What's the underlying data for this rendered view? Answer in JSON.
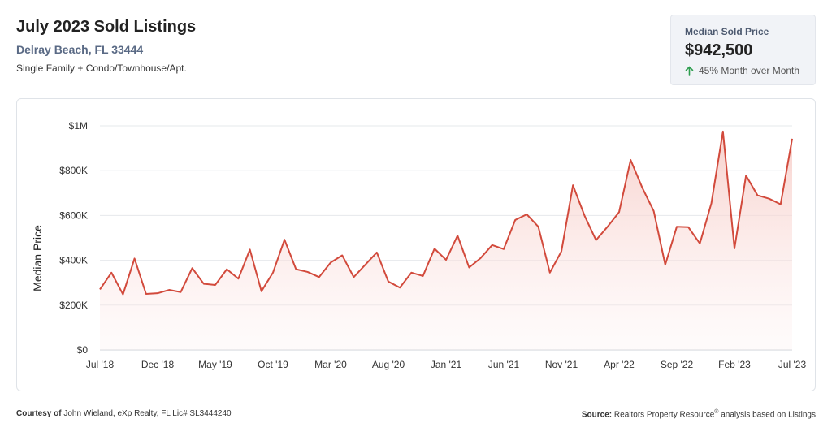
{
  "header": {
    "title": "July 2023 Sold Listings",
    "location": "Delray Beach, FL 33444",
    "property_types": "Single Family + Condo/Townhouse/Apt."
  },
  "stat_card": {
    "label": "Median Sold Price",
    "value": "$942,500",
    "change": "45% Month over Month",
    "change_icon": "arrow-up-icon",
    "change_color": "#2e9e4f"
  },
  "footer": {
    "courtesy_prefix": "Courtesy of",
    "courtesy_text": "John Wieland, eXp Realty, FL Lic# SL3444240",
    "source_prefix": "Source:",
    "source_text_a": "Realtors Property Resource",
    "source_mark": "®",
    "source_text_b": " analysis based on Listings"
  },
  "chart_data": {
    "type": "area",
    "ylabel": "Median Price",
    "ylim": [
      0,
      1000000
    ],
    "y_ticks": [
      0,
      200000,
      400000,
      600000,
      800000,
      1000000
    ],
    "y_tick_labels": [
      "$0",
      "$200K",
      "$400K",
      "$600K",
      "$800K",
      "$1M"
    ],
    "x_tick_labels": [
      "Jul '18",
      "Dec '18",
      "May '19",
      "Oct '19",
      "Mar '20",
      "Aug '20",
      "Jan '21",
      "Jun '21",
      "Nov '21",
      "Apr '22",
      "Sep '22",
      "Feb '23",
      "Jul '23"
    ],
    "x_tick_step": 5,
    "line_color": "#d24a3c",
    "fill_color": "#f6c9c3",
    "grid": true,
    "x": [
      "Jul 2018",
      "Aug 2018",
      "Sep 2018",
      "Oct 2018",
      "Nov 2018",
      "Dec 2018",
      "Jan 2019",
      "Feb 2019",
      "Mar 2019",
      "Apr 2019",
      "May 2019",
      "Jun 2019",
      "Jul 2019",
      "Aug 2019",
      "Sep 2019",
      "Oct 2019",
      "Nov 2019",
      "Dec 2019",
      "Jan 2020",
      "Feb 2020",
      "Mar 2020",
      "Apr 2020",
      "May 2020",
      "Jun 2020",
      "Jul 2020",
      "Aug 2020",
      "Sep 2020",
      "Oct 2020",
      "Nov 2020",
      "Dec 2020",
      "Jan 2021",
      "Feb 2021",
      "Mar 2021",
      "Apr 2021",
      "May 2021",
      "Jun 2021",
      "Jul 2021",
      "Aug 2021",
      "Sep 2021",
      "Oct 2021",
      "Nov 2021",
      "Dec 2021",
      "Jan 2022",
      "Feb 2022",
      "Mar 2022",
      "Apr 2022",
      "May 2022",
      "Jun 2022",
      "Jul 2022",
      "Aug 2022",
      "Sep 2022",
      "Oct 2022",
      "Nov 2022",
      "Dec 2022",
      "Jan 2023",
      "Feb 2023",
      "Mar 2023",
      "Apr 2023",
      "May 2023",
      "Jun 2023",
      "Jul 2023"
    ],
    "values": [
      270000,
      345000,
      248000,
      408000,
      250000,
      253000,
      268000,
      258000,
      365000,
      295000,
      290000,
      360000,
      318000,
      448000,
      262000,
      345000,
      492000,
      360000,
      348000,
      325000,
      390000,
      422000,
      325000,
      380000,
      435000,
      305000,
      278000,
      345000,
      330000,
      452000,
      402000,
      510000,
      368000,
      410000,
      468000,
      450000,
      580000,
      605000,
      550000,
      345000,
      440000,
      735000,
      600000,
      490000,
      550000,
      615000,
      848000,
      725000,
      620000,
      380000,
      550000,
      548000,
      475000,
      655000,
      975000,
      453000,
      778000,
      690000,
      675000,
      650000,
      942500
    ]
  }
}
